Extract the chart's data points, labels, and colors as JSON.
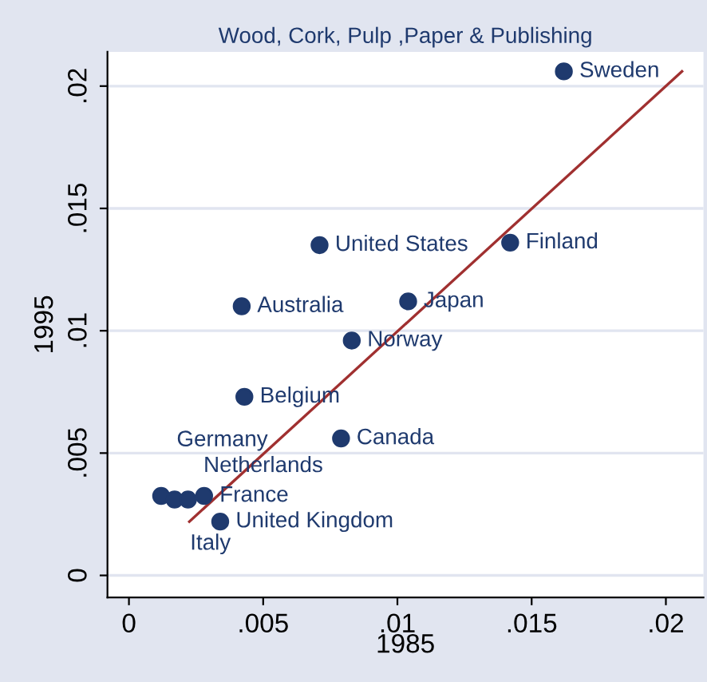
{
  "chart_data": {
    "type": "scatter",
    "title": "Wood, Cork, Pulp ,Paper & Publishing",
    "xlabel": "1985",
    "ylabel": "1995",
    "series": [
      {
        "type": "scatter",
        "marker": "circle",
        "color": "#1f3a6e",
        "x": [
          0.0162,
          0.0071,
          0.0142,
          0.0042,
          0.0104,
          0.0083,
          0.0043,
          0.0079,
          0.0034,
          0.0012,
          0.0017,
          0.0022,
          0.0028
        ],
        "values": [
          0.0206,
          0.0135,
          0.0136,
          0.011,
          0.0112,
          0.0096,
          0.0073,
          0.0056,
          0.0022,
          0.00325,
          0.0031,
          0.0031,
          0.00325
        ]
      },
      {
        "type": "line",
        "marker": "none",
        "color": "#a03030",
        "x": [
          0.00225,
          0.0206
        ],
        "values": [
          0.0022,
          0.0206
        ]
      }
    ],
    "annotations": [
      {
        "text": "Sweden",
        "x": 0.0162,
        "y": 0.0206
      },
      {
        "text": "United States",
        "x": 0.0071,
        "y": 0.0135
      },
      {
        "text": "Finland",
        "x": 0.0142,
        "y": 0.0136
      },
      {
        "text": "Australia",
        "x": 0.0042,
        "y": 0.011
      },
      {
        "text": "Japan",
        "x": 0.0104,
        "y": 0.0112
      },
      {
        "text": "Norway",
        "x": 0.0083,
        "y": 0.0096
      },
      {
        "text": "Belgium",
        "x": 0.0043,
        "y": 0.0073
      },
      {
        "text": "Canada",
        "x": 0.0079,
        "y": 0.0056
      },
      {
        "text": "United Kingdom",
        "x": 0.0034,
        "y": 0.0022
      },
      {
        "text": "Germany",
        "x": 0.0012,
        "y": 0.00325
      },
      {
        "text": "Italy",
        "x": 0.0017,
        "y": 0.0031
      },
      {
        "text": "Netherlands",
        "x": 0.0022,
        "y": 0.0031
      },
      {
        "text": "France",
        "x": 0.0028,
        "y": 0.00325
      }
    ],
    "xlim": [
      -0.0008,
      0.0214
    ],
    "ylim": [
      -0.0009,
      0.0214
    ],
    "xticks": [
      {
        "value": 0,
        "label": "0"
      },
      {
        "value": 0.005,
        "label": ".005"
      },
      {
        "value": 0.01,
        "label": ".01"
      },
      {
        "value": 0.015,
        "label": ".015"
      },
      {
        "value": 0.02,
        "label": ".02"
      }
    ],
    "yticks": [
      {
        "value": 0,
        "label": "0"
      },
      {
        "value": 0.005,
        "label": ".005"
      },
      {
        "value": 0.01,
        "label": ".01"
      },
      {
        "value": 0.015,
        "label": ".015"
      },
      {
        "value": 0.02,
        "label": ".02"
      }
    ],
    "grid": "y"
  }
}
